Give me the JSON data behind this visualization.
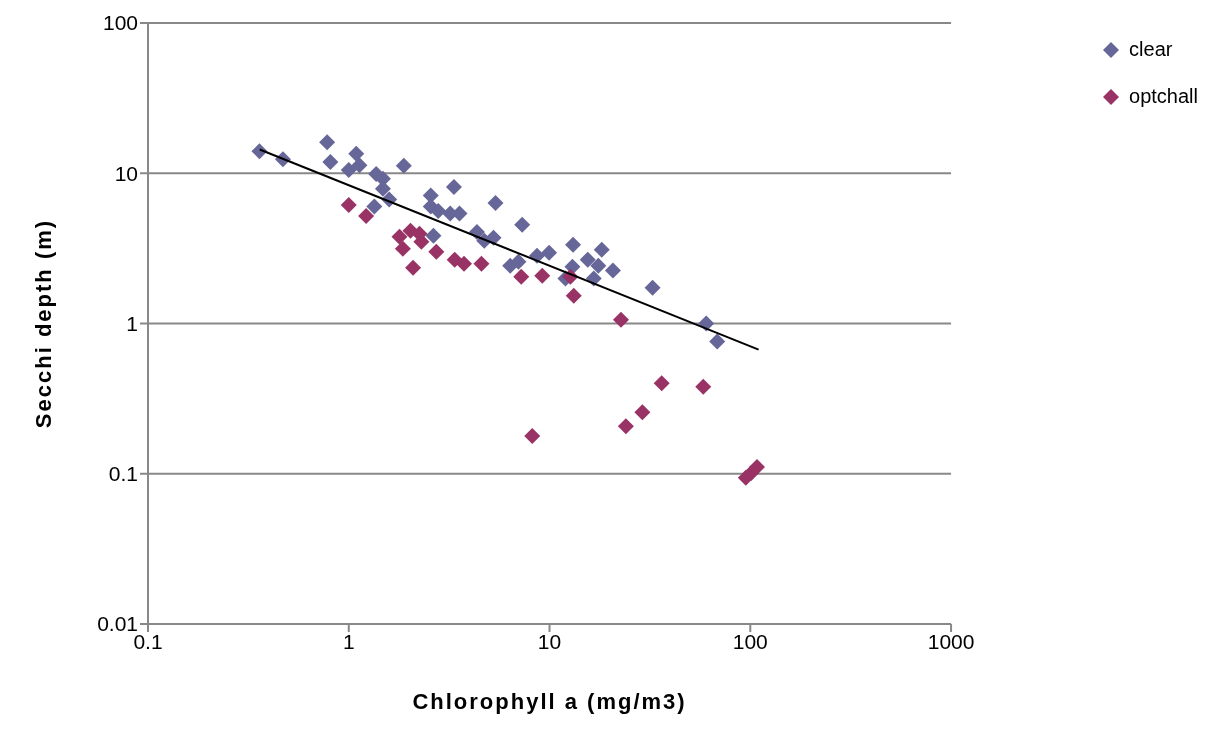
{
  "chart_data": {
    "type": "scatter",
    "xlabel": "Chlorophyll a (mg/m3)",
    "ylabel": "Secchi depth (m)",
    "log": "xy",
    "xlim": [
      0.1,
      1000
    ],
    "xticks": [
      0.1,
      1,
      10,
      100,
      1000
    ],
    "ylim": [
      0.01,
      100
    ],
    "yticks": [
      0.01,
      0.1,
      1,
      10,
      100
    ],
    "grid": "y",
    "legend": "top right",
    "marker": "diamond",
    "series": [
      {
        "name": "clear",
        "color": "#666699",
        "x": [
          0.359,
          0.47,
          0.78,
          0.81,
          1.09,
          1.0,
          1.13,
          1.37,
          1.48,
          1.88,
          1.48,
          1.59,
          1.34,
          2.56,
          2.56,
          2.79,
          3.34,
          3.2,
          3.56,
          5.38,
          4.35,
          4.73,
          5.26,
          7.31,
          2.64,
          6.37,
          7.0,
          8.66,
          9.95,
          13.1,
          18.2,
          15.5,
          17.5,
          16.6,
          12.0,
          13.0,
          20.7,
          32.6,
          60.3,
          68.4
        ],
        "values": [
          14.0,
          12.4,
          16.1,
          11.9,
          13.5,
          10.5,
          11.3,
          9.9,
          9.2,
          11.2,
          7.9,
          6.7,
          6.0,
          7.1,
          6.0,
          5.6,
          8.1,
          5.4,
          5.4,
          6.35,
          4.07,
          3.55,
          3.72,
          4.54,
          3.84,
          2.42,
          2.58,
          2.82,
          2.96,
          3.34,
          3.1,
          2.66,
          2.42,
          1.99,
          1.99,
          2.39,
          2.25,
          1.73,
          1.0,
          0.76
        ]
      },
      {
        "name": "optchall",
        "color": "#993366",
        "x": [
          1.0,
          1.22,
          1.79,
          2.03,
          2.25,
          2.3,
          1.86,
          2.09,
          2.73,
          3.37,
          3.75,
          4.58,
          7.23,
          9.2,
          12.7,
          13.2,
          22.7,
          36.2,
          58.3,
          29.0,
          24.0,
          8.2,
          95,
          101,
          108
        ],
        "values": [
          6.15,
          5.2,
          3.78,
          4.14,
          3.96,
          3.5,
          3.15,
          2.35,
          3.0,
          2.66,
          2.5,
          2.5,
          2.05,
          2.08,
          2.05,
          1.53,
          1.06,
          0.4,
          0.38,
          0.257,
          0.207,
          0.178,
          0.094,
          0.101,
          0.111
        ]
      },
      {
        "type": "line",
        "color": "#000000",
        "marker": "none",
        "x": [
          0.36,
          110
        ],
        "values": [
          14.4,
          0.67
        ]
      }
    ]
  }
}
